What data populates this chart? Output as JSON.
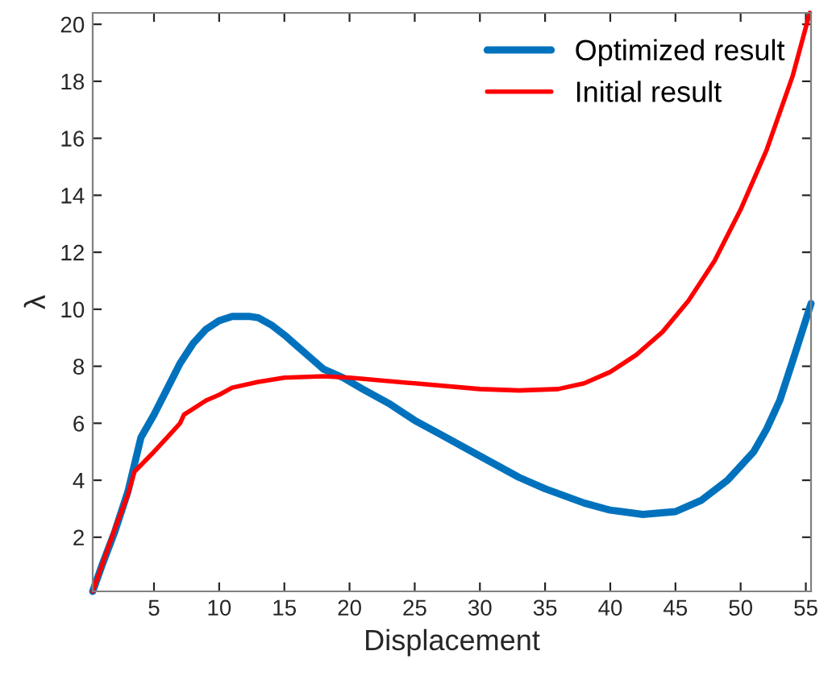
{
  "chart_data": {
    "type": "line",
    "xlabel": "Displacement",
    "ylabel": "λ",
    "xlim": [
      0.3,
      55.4
    ],
    "ylim": [
      0.1,
      20.4
    ],
    "xticks": [
      5,
      10,
      15,
      20,
      25,
      30,
      35,
      40,
      45,
      50,
      55
    ],
    "yticks": [
      2,
      4,
      6,
      8,
      10,
      12,
      14,
      16,
      18,
      20
    ],
    "grid": false,
    "legend": "top right",
    "line_style": "solid",
    "marker": "none",
    "series": [
      {
        "name": "Optimized result",
        "color": "#0072bd",
        "x": [
          0.3,
          1,
          2,
          3,
          4,
          5,
          6,
          7,
          8,
          9,
          10,
          11,
          12.3,
          13,
          14,
          15,
          16,
          17,
          18,
          19.5,
          21,
          23,
          25,
          27,
          30,
          33,
          35,
          38,
          40,
          42.5,
          45,
          47,
          49,
          51,
          52,
          53,
          54,
          55.4
        ],
        "values": [
          0.1,
          1,
          2.2,
          3.6,
          5.5,
          6.3,
          7.2,
          8.1,
          8.8,
          9.3,
          9.6,
          9.75,
          9.75,
          9.7,
          9.45,
          9.1,
          8.7,
          8.3,
          7.9,
          7.6,
          7.2,
          6.7,
          6.1,
          5.6,
          4.85,
          4.1,
          3.7,
          3.2,
          2.95,
          2.8,
          2.9,
          3.3,
          4.0,
          5.0,
          5.8,
          6.8,
          8.2,
          10.2
        ]
      },
      {
        "name": "Initial result",
        "color": "#ff0000",
        "x": [
          0.3,
          1,
          2,
          3,
          3.5,
          5,
          6,
          7,
          7.3,
          9,
          10,
          11,
          13,
          15,
          18,
          20,
          25,
          30,
          33,
          36,
          38,
          40,
          42,
          44,
          46,
          48,
          50,
          52,
          54,
          55.3
        ],
        "values": [
          0.1,
          1,
          2.3,
          3.5,
          4.3,
          5.0,
          5.5,
          6.0,
          6.3,
          6.8,
          7.0,
          7.25,
          7.45,
          7.6,
          7.65,
          7.6,
          7.4,
          7.2,
          7.15,
          7.2,
          7.4,
          7.8,
          8.4,
          9.2,
          10.3,
          11.7,
          13.5,
          15.6,
          18.2,
          20.4
        ]
      }
    ]
  }
}
